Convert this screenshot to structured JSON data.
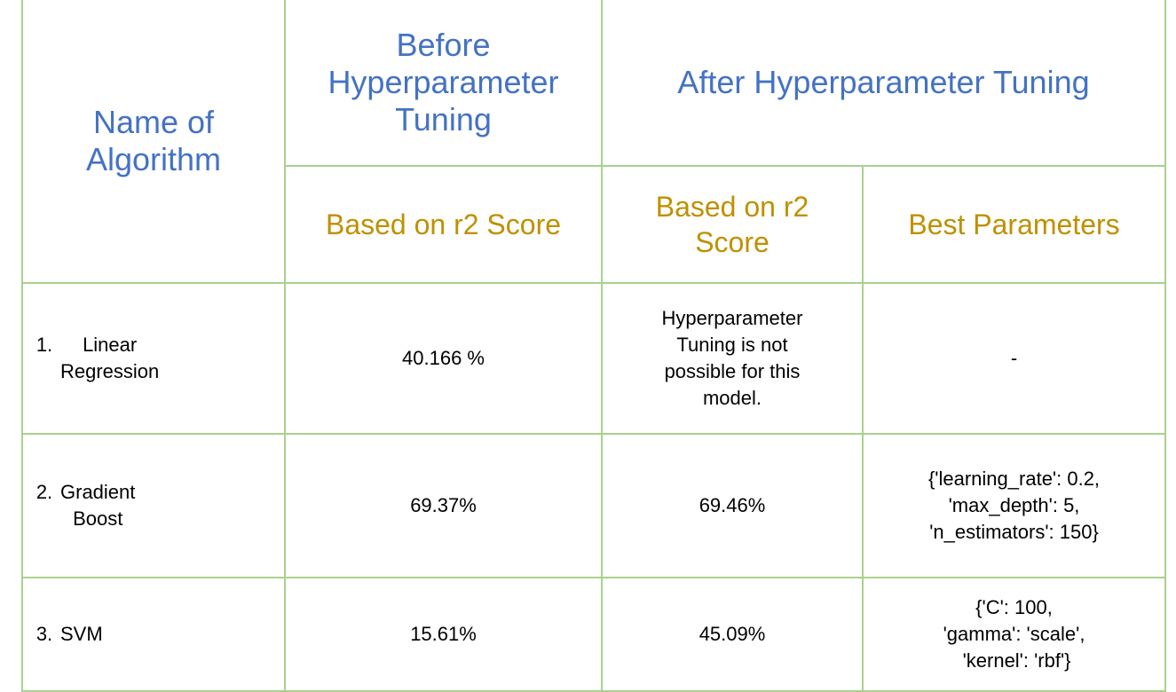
{
  "header": {
    "name_of_algorithm": [
      "Name of",
      "Algorithm"
    ],
    "before_tuning": [
      "Before",
      "Hyperparameter",
      "Tuning"
    ],
    "after_tuning": "After Hyperparameter Tuning",
    "before_r2": "Based on r2 Score",
    "after_r2": [
      "Based on r2",
      "Score"
    ],
    "best_params": "Best Parameters"
  },
  "rows": [
    {
      "number": "1.",
      "name": [
        "Linear",
        "Regression"
      ],
      "before_r2": "40.166 %",
      "after_r2": [
        "Hyperparameter",
        "Tuning is not",
        "possible for this",
        "model."
      ],
      "best_params": [
        "-"
      ]
    },
    {
      "number": "2.",
      "name": [
        "Gradient",
        "Boost"
      ],
      "before_r2": "69.37%",
      "after_r2": [
        "69.46%"
      ],
      "best_params": [
        "{'learning_rate': 0.2,",
        "'max_depth': 5,",
        "'n_estimators': 150}"
      ]
    },
    {
      "number": "3.",
      "name": [
        "SVM"
      ],
      "before_r2": "15.61%",
      "after_r2": [
        "45.09%"
      ],
      "best_params": [
        "{'C': 100,",
        "'gamma': 'scale',",
        " 'kernel': 'rbf'}"
      ]
    }
  ]
}
